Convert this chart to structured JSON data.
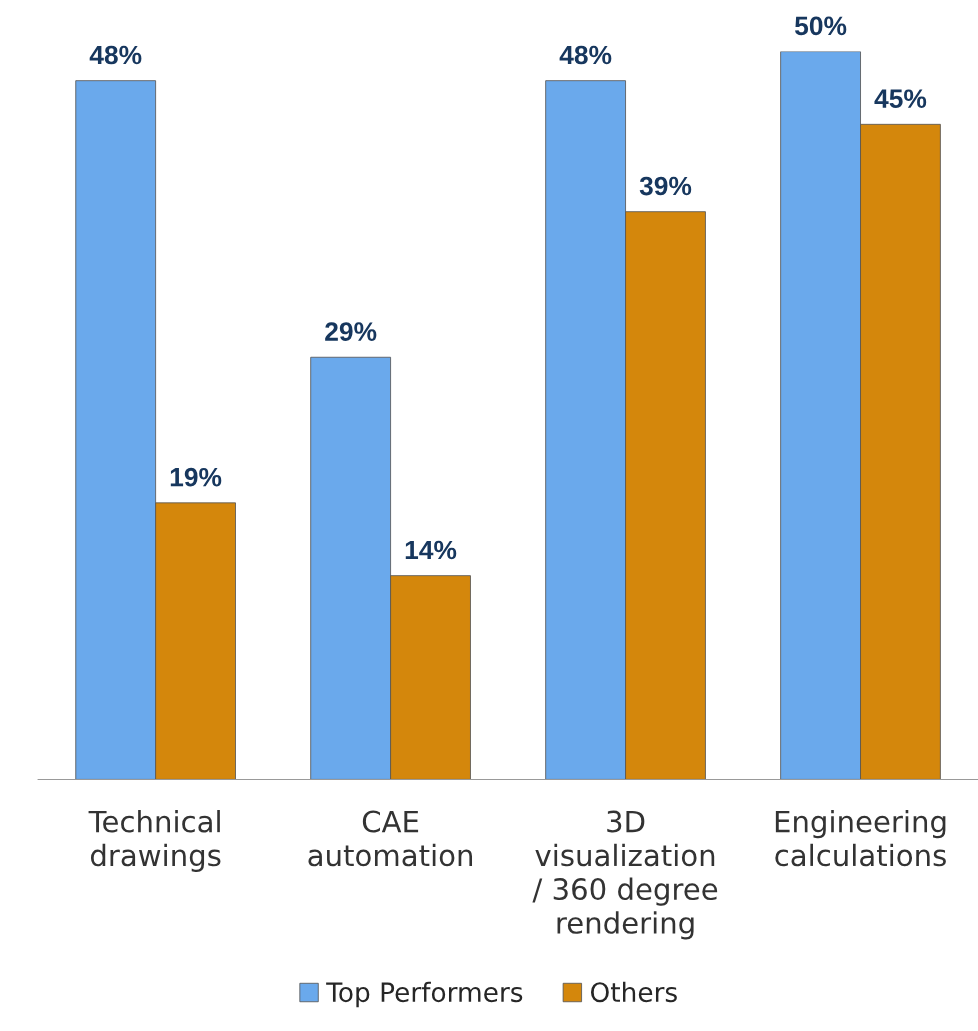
{
  "chart_data": {
    "type": "bar",
    "categories": [
      "Technical\ndrawings",
      "CAE\nautomation",
      "3D\nvisualization\n/ 360 degree\nrendering",
      "Engineering\ncalculations"
    ],
    "series": [
      {
        "name": "Top Performers",
        "color": "#6aa9ec",
        "values": [
          48,
          29,
          48,
          50
        ],
        "value_labels": [
          "48%",
          "29%",
          "48%",
          "50%"
        ]
      },
      {
        "name": "Others",
        "color": "#d4870c",
        "values": [
          19,
          14,
          39,
          45
        ],
        "value_labels": [
          "19%",
          "14%",
          "39%",
          "45%"
        ]
      }
    ],
    "legend": "bottom",
    "grid": false
  }
}
